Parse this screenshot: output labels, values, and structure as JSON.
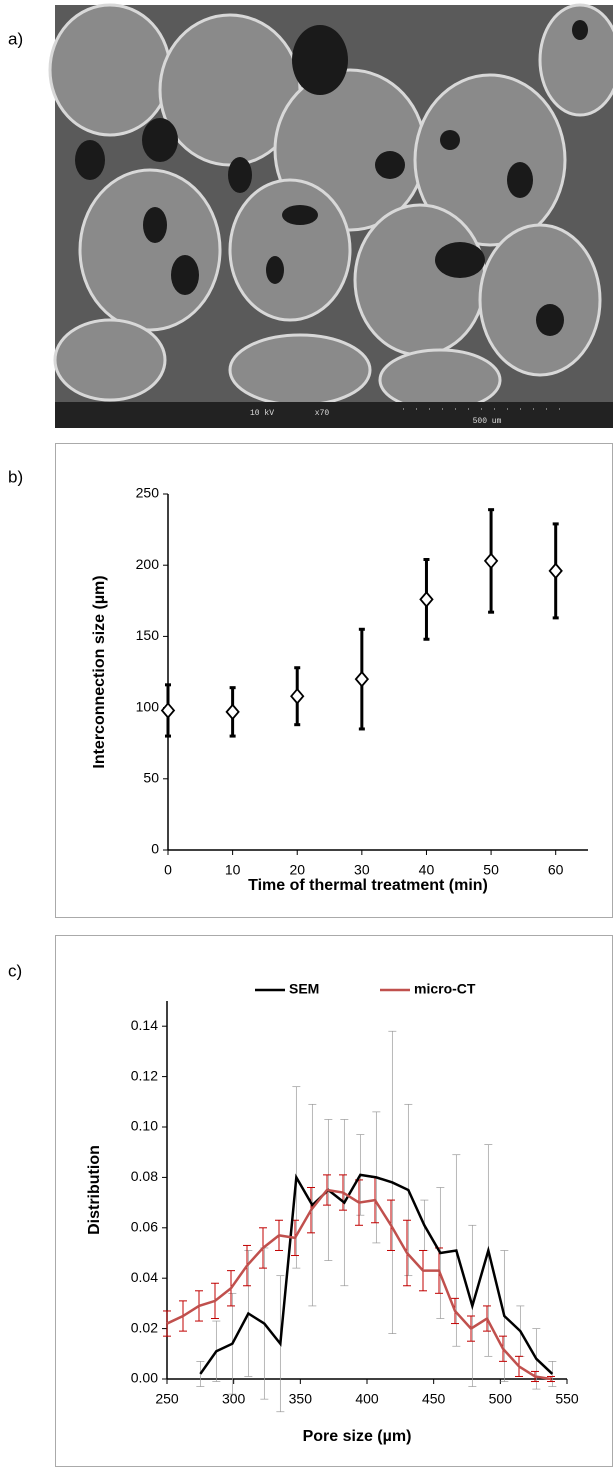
{
  "panel_labels": [
    "a)",
    "b)",
    "c)"
  ],
  "image": {
    "voltage": "10 kV",
    "magnification": "x70",
    "scale_bar": "500 um"
  },
  "chart_data": [
    {
      "type": "scatter",
      "x_label": "Time of thermal treatment (min)",
      "y_label": "Interconnection size (µm)",
      "x": [
        0,
        10,
        20,
        30,
        40,
        50,
        60
      ],
      "values": [
        98,
        97,
        108,
        120,
        176,
        203,
        196
      ],
      "errors": [
        18,
        17,
        20,
        35,
        28,
        36,
        33
      ],
      "color": "#000000",
      "xlim": [
        0,
        65
      ],
      "xticks": [
        0,
        10,
        20,
        30,
        40,
        50,
        60
      ],
      "ylim": [
        0,
        250
      ],
      "yticks": [
        0,
        50,
        100,
        150,
        200,
        250
      ]
    },
    {
      "type": "line",
      "x_label": "Pore size (µm)",
      "y_label": "Distribution",
      "legend": "top",
      "series": [
        {
          "name": "SEM",
          "color": "#000000",
          "error_color": "#999999",
          "x": [
            275,
            287,
            299,
            311,
            323,
            335,
            347,
            359,
            371,
            383,
            395,
            407,
            419,
            431,
            443,
            455,
            467,
            479,
            491,
            503,
            515,
            527,
            539
          ],
          "values": [
            0.002,
            0.011,
            0.014,
            0.026,
            0.022,
            0.014,
            0.08,
            0.069,
            0.075,
            0.07,
            0.081,
            0.08,
            0.078,
            0.075,
            0.061,
            0.05,
            0.051,
            0.029,
            0.051,
            0.025,
            0.019,
            0.008,
            0.002
          ],
          "errors": [
            0.005,
            0.012,
            0.02,
            0.025,
            0.03,
            0.027,
            0.036,
            0.04,
            0.028,
            0.033,
            0.016,
            0.026,
            0.06,
            0.034,
            0.01,
            0.026,
            0.038,
            0.032,
            0.042,
            0.026,
            0.01,
            0.012,
            0.005
          ]
        },
        {
          "name": "micro-CT",
          "color": "#c0504d",
          "error_color": "#c00000",
          "x": [
            250,
            262,
            274,
            286,
            298,
            310,
            322,
            334,
            346,
            358,
            370,
            382,
            394,
            406,
            418,
            430,
            442,
            454,
            466,
            478,
            490,
            502,
            514,
            526,
            538
          ],
          "values": [
            0.022,
            0.025,
            0.029,
            0.031,
            0.036,
            0.045,
            0.052,
            0.057,
            0.056,
            0.067,
            0.075,
            0.074,
            0.07,
            0.071,
            0.061,
            0.05,
            0.043,
            0.043,
            0.027,
            0.02,
            0.024,
            0.012,
            0.005,
            0.001,
            0.0
          ],
          "errors": [
            0.005,
            0.006,
            0.006,
            0.007,
            0.007,
            0.008,
            0.008,
            0.006,
            0.007,
            0.009,
            0.006,
            0.007,
            0.009,
            0.009,
            0.01,
            0.013,
            0.008,
            0.009,
            0.005,
            0.005,
            0.005,
            0.005,
            0.004,
            0.002,
            0.001
          ]
        }
      ],
      "xlim": [
        250,
        550
      ],
      "xticks": [
        250,
        300,
        350,
        400,
        450,
        500,
        550
      ],
      "ylim": [
        0,
        0.15
      ],
      "yticks": [
        {
          "value": 0,
          "label": "0.00"
        },
        {
          "value": 0.02,
          "label": "0.02"
        },
        {
          "value": 0.04,
          "label": "0.04"
        },
        {
          "value": 0.06,
          "label": "0.06"
        },
        {
          "value": 0.08,
          "label": "0.08"
        },
        {
          "value": 0.1,
          "label": "0.10"
        },
        {
          "value": 0.12,
          "label": "0.12"
        },
        {
          "value": 0.14,
          "label": "0.14"
        }
      ]
    }
  ]
}
